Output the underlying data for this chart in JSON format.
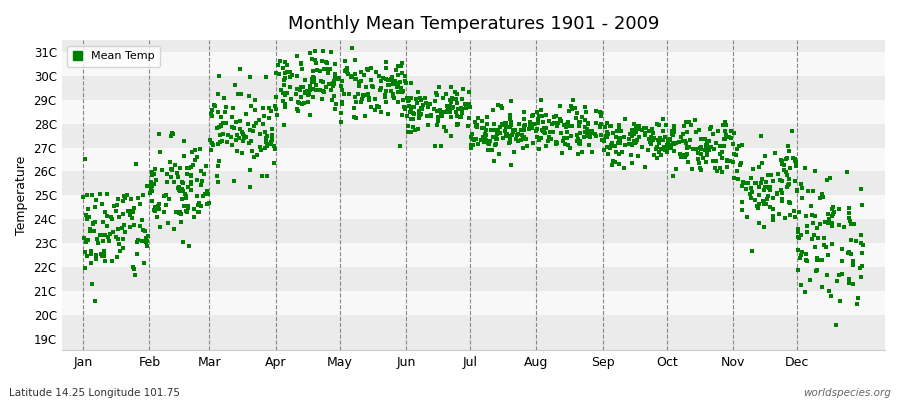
{
  "title": "Monthly Mean Temperatures 1901 - 2009",
  "ylabel": "Temperature",
  "xlabel_months": [
    "Jan",
    "Feb",
    "Mar",
    "Apr",
    "May",
    "Jun",
    "Jul",
    "Aug",
    "Sep",
    "Oct",
    "Nov",
    "Dec"
  ],
  "footer_left": "Latitude 14.25 Longitude 101.75",
  "footer_right": "worldspecies.org",
  "legend_label": "Mean Temp",
  "marker_color": "#008000",
  "background_color": "#ffffff",
  "band_colors": [
    "#ebebeb",
    "#f8f8f8"
  ],
  "yticks": [
    19,
    20,
    21,
    22,
    23,
    24,
    25,
    26,
    27,
    28,
    29,
    30,
    31
  ],
  "ylim": [
    18.5,
    31.5
  ],
  "n_years": 109,
  "start_year": 1901,
  "end_year": 2009,
  "monthly_mean_temps": [
    23.5,
    25.2,
    27.8,
    29.8,
    29.5,
    28.5,
    27.7,
    27.7,
    27.3,
    27.1,
    25.5,
    23.2
  ],
  "monthly_std_temps": [
    1.1,
    1.1,
    0.9,
    0.7,
    0.7,
    0.5,
    0.5,
    0.5,
    0.5,
    0.6,
    1.0,
    1.4
  ],
  "random_seed": 42
}
